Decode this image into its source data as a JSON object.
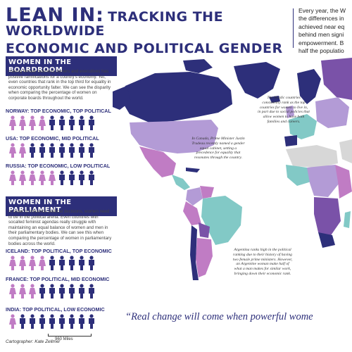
{
  "title": {
    "line1a": "LEAN IN:",
    "line1b": "TRACKING THE WORLDWIDE",
    "line2": "ECONOMIC AND POLITICAL GENDER GAP"
  },
  "intro": [
    "Every year, the W",
    "the differences in",
    "achieved near eq",
    "behind men signi",
    "empowerment. B",
    "half the populatio"
  ],
  "boardroom": {
    "heading": "WOMEN IN THE BOARDROOM",
    "text": "Having female business owners and executives has positive ramifications for a country's economy. Yet, even countries that rank in the top third for equality in economic opportunity falter. We can see the disparity when comparing the percentage of women on corporate boards throughout the world.",
    "rows": [
      {
        "label": "NORWAY: TOP ECONOMIC, TOP POLITICAL",
        "women": 4
      },
      {
        "label": "USA: TOP ECONOMIC, MID POLITICAL",
        "women": 2
      },
      {
        "label": "RUSSIA: TOP ECONOMIC, LOW POLITICAL",
        "women": 5
      }
    ]
  },
  "parliament": {
    "heading": "WOMEN IN THE PARLIAMENT",
    "text": "In order to influence political decisions, women need to be in the political arena. Even countries with socalled feminist agendas really struggle with maintaining an equal balance of women and men in their parliamentary bodies. We can see this when comparing the percentage of women in parliamentary bodies across the world.",
    "rows": [
      {
        "label": "ICELAND: TOP POLITICAL, TOP ECONOMIC",
        "women": 4
      },
      {
        "label": "FRANCE: TOP POLITICAL, MID ECONOMIC",
        "women": 3
      },
      {
        "label": "INDIA: TOP POLITICAL, LOW ECONOMIC",
        "women": 1
      }
    ]
  },
  "annotations": {
    "nordic": "The Nordic countries consistently rank as the top countries for women to live in, in part due to social policies that allow women to have both families and careers.",
    "canada": "In Canada, Prime Minister Justin Trudeau recently named a gender equal cabinet, setting a precedence for equality that resonates through the country.",
    "argentina": "Argentina ranks high in the political ranking due to their history of having two female prime ministers. However, an Argentine woman make half of what a man makes for similar work, bringing down their economic rank."
  },
  "quote": "“Real change will come when powerful wome",
  "credit": "Cartographer: Kate Zellmer",
  "scale_label": "960 Miles",
  "colors": {
    "navy": "#2d2f7a",
    "purple": "#7a52a8",
    "pink": "#c07cc4",
    "teal": "#82c9c6",
    "lightpurple": "#b39bd6",
    "gray": "#d7d7d7"
  }
}
